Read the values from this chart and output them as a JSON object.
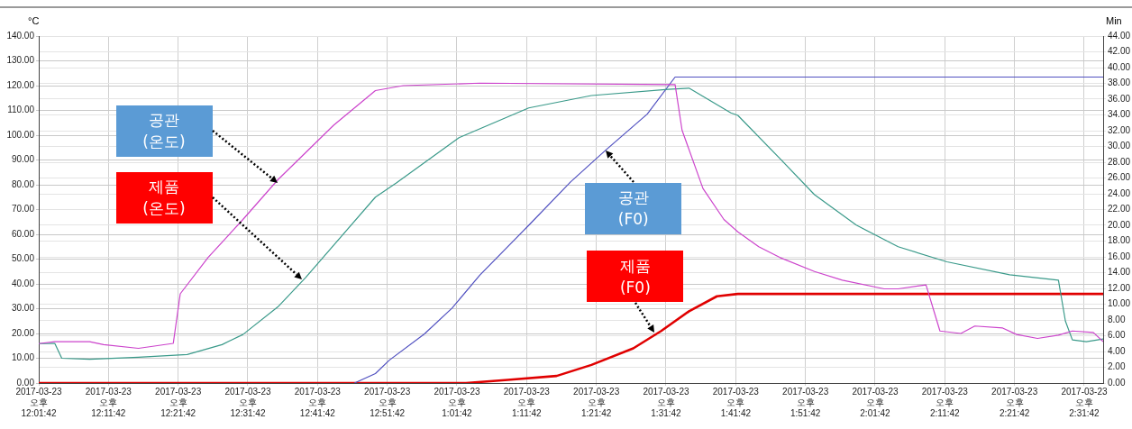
{
  "chart_data": {
    "type": "line",
    "ylabel": "°C",
    "y2label": "Min",
    "xlim": [
      "2017-03-23T12:01:42",
      "2017-03-23T14:34:25"
    ],
    "xticks": [
      {
        "value": "2017-03-23T12:01:42",
        "label": "2017-03-23\n오후\n12:01:42"
      },
      {
        "value": "2017-03-23T12:11:42",
        "label": "2017-03-23\n오후\n12:11:42"
      },
      {
        "value": "2017-03-23T12:21:42",
        "label": "2017-03-23\n오후\n12:21:42"
      },
      {
        "value": "2017-03-23T12:31:42",
        "label": "2017-03-23\n오후\n12:31:42"
      },
      {
        "value": "2017-03-23T12:41:42",
        "label": "2017-03-23\n오후\n12:41:42"
      },
      {
        "value": "2017-03-23T12:51:42",
        "label": "2017-03-23\n오후\n12:51:42"
      },
      {
        "value": "2017-03-23T13:01:42",
        "label": "2017-03-23\n오후\n1:01:42"
      },
      {
        "value": "2017-03-23T13:11:42",
        "label": "2017-03-23\n오후\n1:11:42"
      },
      {
        "value": "2017-03-23T13:21:42",
        "label": "2017-03-23\n오후\n1:21:42"
      },
      {
        "value": "2017-03-23T13:31:42",
        "label": "2017-03-23\n오후\n1:31:42"
      },
      {
        "value": "2017-03-23T13:41:42",
        "label": "2017-03-23\n오후\n1:41:42"
      },
      {
        "value": "2017-03-23T13:51:42",
        "label": "2017-03-23\n오후\n1:51:42"
      },
      {
        "value": "2017-03-23T14:01:42",
        "label": "2017-03-23\n오후\n2:01:42"
      },
      {
        "value": "2017-03-23T14:11:42",
        "label": "2017-03-23\n오후\n2:11:42"
      },
      {
        "value": "2017-03-23T14:21:42",
        "label": "2017-03-23\n오후\n2:21:42"
      },
      {
        "value": "2017-03-23T14:31:42",
        "label": "2017-03-23\n오후\n2:31:42"
      }
    ],
    "ylim": [
      0,
      140
    ],
    "yticks": [
      {
        "value": 0,
        "label": "0.00"
      },
      {
        "value": 10,
        "label": "10.00"
      },
      {
        "value": 20,
        "label": "20.00"
      },
      {
        "value": 30,
        "label": "30.00"
      },
      {
        "value": 40,
        "label": "40.00"
      },
      {
        "value": 50,
        "label": "50.00"
      },
      {
        "value": 60,
        "label": "60.00"
      },
      {
        "value": 70,
        "label": "70.00"
      },
      {
        "value": 80,
        "label": "80.00"
      },
      {
        "value": 90,
        "label": "90.00"
      },
      {
        "value": 100,
        "label": "100.00"
      },
      {
        "value": 110,
        "label": "110.00"
      },
      {
        "value": 120,
        "label": "120.00"
      },
      {
        "value": 130,
        "label": "130.00"
      },
      {
        "value": 140,
        "label": "140.00"
      }
    ],
    "y2lim": [
      0,
      44
    ],
    "y2ticks": [
      {
        "value": 0,
        "label": "0.00"
      },
      {
        "value": 2,
        "label": "2.00"
      },
      {
        "value": 4,
        "label": "4.00"
      },
      {
        "value": 6,
        "label": "6.00"
      },
      {
        "value": 8,
        "label": "8.00"
      },
      {
        "value": 10,
        "label": "10.00"
      },
      {
        "value": 12,
        "label": "12.00"
      },
      {
        "value": 14,
        "label": "14.00"
      },
      {
        "value": 16,
        "label": "16.00"
      },
      {
        "value": 18,
        "label": "18.00"
      },
      {
        "value": 20,
        "label": "20.00"
      },
      {
        "value": 22,
        "label": "22.00"
      },
      {
        "value": 24,
        "label": "24.00"
      },
      {
        "value": 26,
        "label": "26.00"
      },
      {
        "value": 28,
        "label": "28.00"
      },
      {
        "value": 30,
        "label": "30.00"
      },
      {
        "value": 32,
        "label": "32.00"
      },
      {
        "value": 34,
        "label": "34.00"
      },
      {
        "value": 36,
        "label": "36.00"
      },
      {
        "value": 38,
        "label": "38.00"
      },
      {
        "value": 40,
        "label": "40.00"
      },
      {
        "value": 42,
        "label": "42.00"
      },
      {
        "value": 44,
        "label": "44.00"
      }
    ],
    "grid": true,
    "legend": false,
    "marker": "none",
    "line_style": "solid",
    "series": [
      {
        "color": "#cc44cc",
        "x": [
          "2017-03-23T12:01:42",
          "2017-03-23T12:04",
          "2017-03-23T12:09",
          "2017-03-23T12:11",
          "2017-03-23T12:16",
          "2017-03-23T12:21",
          "2017-03-23T12:22",
          "2017-03-23T12:26",
          "2017-03-23T12:31",
          "2017-03-23T12:36",
          "2017-03-23T12:44",
          "2017-03-23T12:50",
          "2017-03-23T12:54",
          "2017-03-23T13:05",
          "2017-03-23T13:33",
          "2017-03-23T13:34",
          "2017-03-23T13:37",
          "2017-03-23T13:40",
          "2017-03-23T13:42",
          "2017-03-23T13:45",
          "2017-03-23T13:48",
          "2017-03-23T13:53",
          "2017-03-23T13:57",
          "2017-03-23T14:03",
          "2017-03-23T14:05",
          "2017-03-23T14:09",
          "2017-03-23T14:11",
          "2017-03-23T14:14",
          "2017-03-23T14:16",
          "2017-03-23T14:20",
          "2017-03-23T14:22",
          "2017-03-23T14:25",
          "2017-03-23T14:28",
          "2017-03-23T14:30",
          "2017-03-23T14:33",
          "2017-03-23T14:34:25"
        ],
        "values": [
          15.9,
          16.7,
          16.7,
          15.5,
          14,
          16,
          36,
          50.7,
          66,
          82,
          104,
          118,
          120,
          121,
          120.4,
          102,
          78.5,
          66,
          61,
          55,
          50.7,
          45,
          41.5,
          38,
          38,
          39.6,
          21,
          20,
          23,
          22.2,
          19.6,
          18,
          19.3,
          21,
          20.4,
          16.7
        ]
      },
      {
        "color": "#3a9a8a",
        "x": [
          "2017-03-23T12:01:42",
          "2017-03-23T12:04",
          "2017-03-23T12:05",
          "2017-03-23T12:09",
          "2017-03-23T12:16",
          "2017-03-23T12:23",
          "2017-03-23T12:28",
          "2017-03-23T12:31",
          "2017-03-23T12:36",
          "2017-03-23T12:40",
          "2017-03-23T12:50",
          "2017-03-23T12:53",
          "2017-03-23T13:02",
          "2017-03-23T13:12",
          "2017-03-23T13:21",
          "2017-03-23T13:32",
          "2017-03-23T13:35",
          "2017-03-23T13:41",
          "2017-03-23T13:42",
          "2017-03-23T13:48",
          "2017-03-23T13:53",
          "2017-03-23T13:59",
          "2017-03-23T14:05",
          "2017-03-23T14:12",
          "2017-03-23T14:21",
          "2017-03-23T14:28",
          "2017-03-23T14:29",
          "2017-03-23T14:30",
          "2017-03-23T14:32",
          "2017-03-23T14:34:25"
        ],
        "values": [
          15.9,
          16,
          10,
          9.6,
          10.4,
          11.5,
          15.5,
          19.6,
          30.7,
          42.6,
          75,
          80.7,
          99,
          111,
          116,
          118.5,
          119,
          109,
          108,
          90.7,
          76,
          63.7,
          55,
          48.9,
          43.7,
          41.5,
          25,
          17.4,
          16.7,
          17.8
        ]
      },
      {
        "color": "#5050c0",
        "axis": "y2",
        "x": [
          "2017-03-23T12:47",
          "2017-03-23T12:50",
          "2017-03-23T12:52",
          "2017-03-23T12:57",
          "2017-03-23T13:01",
          "2017-03-23T13:05",
          "2017-03-23T13:12",
          "2017-03-23T13:18",
          "2017-03-23T13:23",
          "2017-03-23T13:29",
          "2017-03-23T13:33",
          "2017-03-23T14:34:25"
        ],
        "values": [
          0,
          1.2,
          2.9,
          6.2,
          9.5,
          13.7,
          20,
          25.5,
          29.5,
          34.1,
          38.8,
          38.8
        ]
      },
      {
        "color": "#e00000",
        "axis": "y2",
        "x": [
          "2017-03-23T12:01:42",
          "2017-03-23T13:03",
          "2017-03-23T13:09",
          "2017-03-23T13:16",
          "2017-03-23T13:21",
          "2017-03-23T13:27",
          "2017-03-23T13:31",
          "2017-03-23T13:35",
          "2017-03-23T13:39",
          "2017-03-23T13:42",
          "2017-03-23T14:34:25"
        ],
        "values": [
          0,
          0,
          0.4,
          0.9,
          2.3,
          4.4,
          6.6,
          9.1,
          11,
          11.3,
          11.3
        ]
      }
    ],
    "annotations": [
      "공관\n(온도)",
      "제품\n(온도)",
      {
        "text": "공관\n(F0)",
        "x": "2017-03-23T13:23",
        "y": 93.7
      },
      {
        "text": "제품\n(F0)",
        "x": "2017-03-23T13:30",
        "y": 20.4
      }
    ]
  }
}
